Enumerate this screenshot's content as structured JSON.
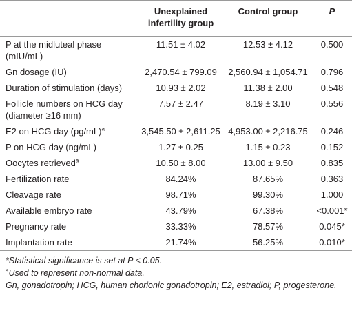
{
  "table": {
    "header": [
      "Unexplained infertility group",
      "Control group",
      "P"
    ],
    "rows": [
      {
        "label": "P at the midluteal phase (mIU/mL)",
        "unexplained": "11.51 ± 4.02",
        "control": "12.53 ± 4.12",
        "p": "0.500"
      },
      {
        "label": "Gn dosage (IU)",
        "unexplained": "2,470.54 ± 799.09",
        "control": "2,560.94 ± 1,054.71",
        "p": "0.796"
      },
      {
        "label": "Duration of stimulation (days)",
        "unexplained": "10.93 ± 2.02",
        "control": "11.38 ± 2.00",
        "p": "0.548"
      },
      {
        "label": "Follicle numbers on HCG day (diameter ≥16 mm)",
        "unexplained": "7.57 ± 2.47",
        "control": "8.19 ± 3.10",
        "p": "0.556"
      },
      {
        "label": "E2 on HCG day (pg/mL)",
        "note": "a",
        "unexplained": "3,545.50 ± 2,611.25",
        "control": "4,953.00 ± 2,216.75",
        "p": "0.246"
      },
      {
        "label": "P on HCG day (ng/mL)",
        "unexplained": "1.27 ± 0.25",
        "control": "1.15 ± 0.23",
        "p": "0.152"
      },
      {
        "label": "Oocytes retrieved",
        "note": "a",
        "unexplained": "10.50 ± 8.00",
        "control": "13.00 ± 9.50",
        "p": "0.835"
      },
      {
        "label": "Fertilization rate",
        "unexplained": "84.24%",
        "control": "87.65%",
        "p": "0.363"
      },
      {
        "label": "Cleavage rate",
        "unexplained": "98.71%",
        "control": "99.30%",
        "p": "1.000"
      },
      {
        "label": "Available embryo rate",
        "unexplained": "43.79%",
        "control": "67.38%",
        "p": "<0.001*"
      },
      {
        "label": "Pregnancy rate",
        "unexplained": "33.33%",
        "control": "78.57%",
        "p": "0.045*"
      },
      {
        "label": "Implantation rate",
        "unexplained": "21.74%",
        "control": "56.25%",
        "p": "0.010*"
      }
    ],
    "footnotes": [
      {
        "text": "*Statistical significance is set at P < 0.05."
      },
      {
        "marker": "a",
        "text": "Used to represent non-normal data."
      },
      {
        "text": "Gn, gonadotropin; HCG, human chorionic gonadotropin; E2, estradiol; P, progesterone."
      }
    ]
  }
}
